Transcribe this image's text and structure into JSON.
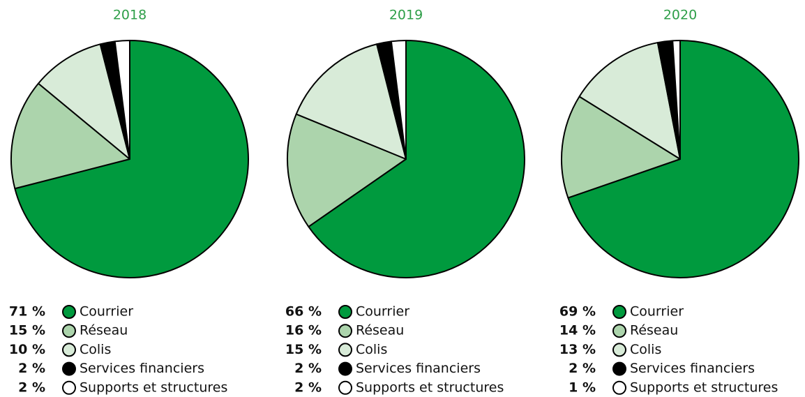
{
  "chart_data": [
    {
      "type": "pie",
      "title": "2018",
      "categories": [
        "Courrier",
        "Réseau",
        "Colis",
        "Services financiers",
        "Supports et structures"
      ],
      "values": [
        71,
        15,
        10,
        2,
        2
      ],
      "value_labels": [
        "71 %",
        "15 %",
        "10 %",
        "2 %",
        "2 %"
      ],
      "colors": [
        "#009a3e",
        "#acd4ac",
        "#d8ebd8",
        "#000000",
        "#ffffff"
      ]
    },
    {
      "type": "pie",
      "title": "2019",
      "categories": [
        "Courrier",
        "Réseau",
        "Colis",
        "Services financiers",
        "Supports et structures"
      ],
      "values": [
        66,
        16,
        15,
        2,
        2
      ],
      "value_labels": [
        "66 %",
        "16 %",
        "15 %",
        "2 %",
        "2 %"
      ],
      "colors": [
        "#009a3e",
        "#acd4ac",
        "#d8ebd8",
        "#000000",
        "#ffffff"
      ]
    },
    {
      "type": "pie",
      "title": "2020",
      "categories": [
        "Courrier",
        "Réseau",
        "Colis",
        "Services financiers",
        "Supports et structures"
      ],
      "values": [
        69,
        14,
        13,
        2,
        1
      ],
      "value_labels": [
        "69 %",
        "14 %",
        "13 %",
        "2 %",
        "1 %"
      ],
      "colors": [
        "#009a3e",
        "#acd4ac",
        "#d8ebd8",
        "#000000",
        "#ffffff"
      ]
    }
  ]
}
